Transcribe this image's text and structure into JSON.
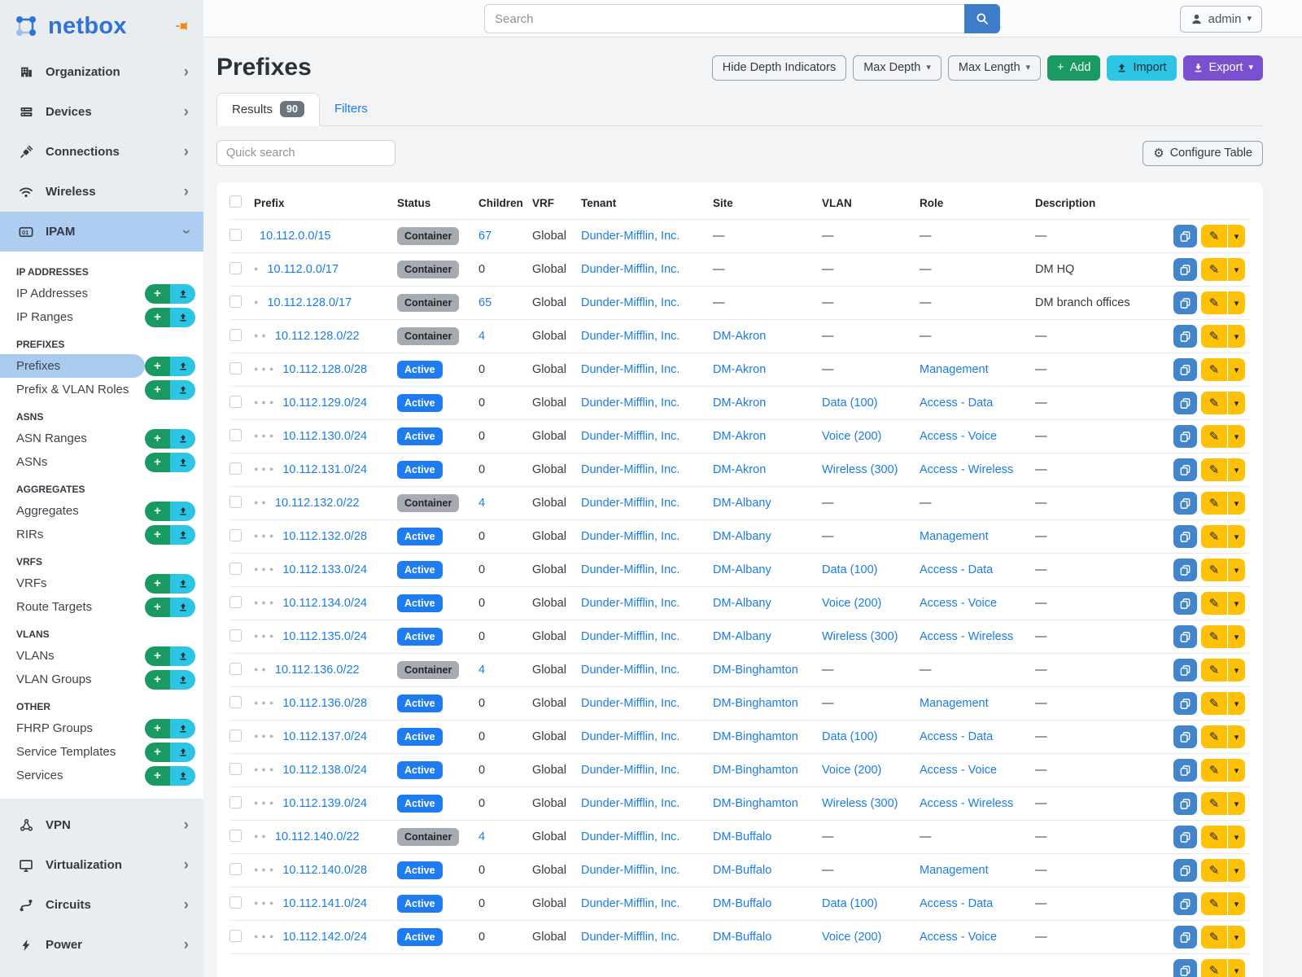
{
  "brand": {
    "name": "netbox"
  },
  "topbar": {
    "search_placeholder": "Search",
    "user_label": "admin"
  },
  "sidebar": {
    "top_items": [
      {
        "label": "Organization",
        "icon": "building-icon"
      },
      {
        "label": "Devices",
        "icon": "server-icon"
      },
      {
        "label": "Connections",
        "icon": "plug-icon"
      },
      {
        "label": "Wireless",
        "icon": "wifi-icon"
      }
    ],
    "active_item": {
      "label": "IPAM",
      "icon": "ipam-icon"
    },
    "ipam_groups": [
      {
        "header": "IP ADDRESSES",
        "items": [
          {
            "label": "IP Addresses"
          },
          {
            "label": "IP Ranges"
          }
        ]
      },
      {
        "header": "PREFIXES",
        "items": [
          {
            "label": "Prefixes",
            "active": true
          },
          {
            "label": "Prefix & VLAN Roles"
          }
        ]
      },
      {
        "header": "ASNS",
        "items": [
          {
            "label": "ASN Ranges"
          },
          {
            "label": "ASNs"
          }
        ]
      },
      {
        "header": "AGGREGATES",
        "items": [
          {
            "label": "Aggregates"
          },
          {
            "label": "RIRs"
          }
        ]
      },
      {
        "header": "VRFS",
        "items": [
          {
            "label": "VRFs"
          },
          {
            "label": "Route Targets"
          }
        ]
      },
      {
        "header": "VLANS",
        "items": [
          {
            "label": "VLANs"
          },
          {
            "label": "VLAN Groups"
          }
        ]
      },
      {
        "header": "OTHER",
        "items": [
          {
            "label": "FHRP Groups"
          },
          {
            "label": "Service Templates"
          },
          {
            "label": "Services"
          }
        ]
      }
    ],
    "bottom_items": [
      {
        "label": "VPN",
        "icon": "vpn-icon"
      },
      {
        "label": "Virtualization",
        "icon": "virtualization-icon"
      },
      {
        "label": "Circuits",
        "icon": "circuits-icon"
      },
      {
        "label": "Power",
        "icon": "power-icon"
      }
    ]
  },
  "page": {
    "title": "Prefixes",
    "toolbar": {
      "hide_depth_label": "Hide Depth Indicators",
      "max_depth_label": "Max Depth",
      "max_length_label": "Max Length",
      "add_label": "Add",
      "import_label": "Import",
      "export_label": "Export"
    },
    "tabs": [
      {
        "label": "Results",
        "count": "90",
        "active": true
      },
      {
        "label": "Filters"
      }
    ],
    "quick_search_placeholder": "Quick search",
    "configure_table_label": "Configure Table"
  },
  "table": {
    "empty_marker": "—",
    "columns": [
      "Prefix",
      "Status",
      "Children",
      "VRF",
      "Tenant",
      "Site",
      "VLAN",
      "Role",
      "Description"
    ],
    "rows": [
      {
        "prefix": "10.112.0.0/15",
        "depth": 0,
        "status": "Container",
        "children": "67",
        "vrf": "Global",
        "tenant": "Dunder-Mifflin, Inc.",
        "site": "",
        "vlan": "",
        "role": "",
        "description": ""
      },
      {
        "prefix": "10.112.0.0/17",
        "depth": 1,
        "status": "Container",
        "children": "0",
        "vrf": "Global",
        "tenant": "Dunder-Mifflin, Inc.",
        "site": "",
        "vlan": "",
        "role": "",
        "description": "DM HQ"
      },
      {
        "prefix": "10.112.128.0/17",
        "depth": 1,
        "status": "Container",
        "children": "65",
        "vrf": "Global",
        "tenant": "Dunder-Mifflin, Inc.",
        "site": "",
        "vlan": "",
        "role": "",
        "description": "DM branch offices"
      },
      {
        "prefix": "10.112.128.0/22",
        "depth": 2,
        "status": "Container",
        "children": "4",
        "vrf": "Global",
        "tenant": "Dunder-Mifflin, Inc.",
        "site": "DM-Akron",
        "vlan": "",
        "role": "",
        "description": ""
      },
      {
        "prefix": "10.112.128.0/28",
        "depth": 3,
        "status": "Active",
        "children": "0",
        "vrf": "Global",
        "tenant": "Dunder-Mifflin, Inc.",
        "site": "DM-Akron",
        "vlan": "",
        "role": "Management",
        "description": ""
      },
      {
        "prefix": "10.112.129.0/24",
        "depth": 3,
        "status": "Active",
        "children": "0",
        "vrf": "Global",
        "tenant": "Dunder-Mifflin, Inc.",
        "site": "DM-Akron",
        "vlan": "Data (100)",
        "role": "Access - Data",
        "description": ""
      },
      {
        "prefix": "10.112.130.0/24",
        "depth": 3,
        "status": "Active",
        "children": "0",
        "vrf": "Global",
        "tenant": "Dunder-Mifflin, Inc.",
        "site": "DM-Akron",
        "vlan": "Voice (200)",
        "role": "Access - Voice",
        "description": ""
      },
      {
        "prefix": "10.112.131.0/24",
        "depth": 3,
        "status": "Active",
        "children": "0",
        "vrf": "Global",
        "tenant": "Dunder-Mifflin, Inc.",
        "site": "DM-Akron",
        "vlan": "Wireless (300)",
        "role": "Access - Wireless",
        "description": ""
      },
      {
        "prefix": "10.112.132.0/22",
        "depth": 2,
        "status": "Container",
        "children": "4",
        "vrf": "Global",
        "tenant": "Dunder-Mifflin, Inc.",
        "site": "DM-Albany",
        "vlan": "",
        "role": "",
        "description": ""
      },
      {
        "prefix": "10.112.132.0/28",
        "depth": 3,
        "status": "Active",
        "children": "0",
        "vrf": "Global",
        "tenant": "Dunder-Mifflin, Inc.",
        "site": "DM-Albany",
        "vlan": "",
        "role": "Management",
        "description": ""
      },
      {
        "prefix": "10.112.133.0/24",
        "depth": 3,
        "status": "Active",
        "children": "0",
        "vrf": "Global",
        "tenant": "Dunder-Mifflin, Inc.",
        "site": "DM-Albany",
        "vlan": "Data (100)",
        "role": "Access - Data",
        "description": ""
      },
      {
        "prefix": "10.112.134.0/24",
        "depth": 3,
        "status": "Active",
        "children": "0",
        "vrf": "Global",
        "tenant": "Dunder-Mifflin, Inc.",
        "site": "DM-Albany",
        "vlan": "Voice (200)",
        "role": "Access - Voice",
        "description": ""
      },
      {
        "prefix": "10.112.135.0/24",
        "depth": 3,
        "status": "Active",
        "children": "0",
        "vrf": "Global",
        "tenant": "Dunder-Mifflin, Inc.",
        "site": "DM-Albany",
        "vlan": "Wireless (300)",
        "role": "Access - Wireless",
        "description": ""
      },
      {
        "prefix": "10.112.136.0/22",
        "depth": 2,
        "status": "Container",
        "children": "4",
        "vrf": "Global",
        "tenant": "Dunder-Mifflin, Inc.",
        "site": "DM-Binghamton",
        "vlan": "",
        "role": "",
        "description": ""
      },
      {
        "prefix": "10.112.136.0/28",
        "depth": 3,
        "status": "Active",
        "children": "0",
        "vrf": "Global",
        "tenant": "Dunder-Mifflin, Inc.",
        "site": "DM-Binghamton",
        "vlan": "",
        "role": "Management",
        "description": ""
      },
      {
        "prefix": "10.112.137.0/24",
        "depth": 3,
        "status": "Active",
        "children": "0",
        "vrf": "Global",
        "tenant": "Dunder-Mifflin, Inc.",
        "site": "DM-Binghamton",
        "vlan": "Data (100)",
        "role": "Access - Data",
        "description": ""
      },
      {
        "prefix": "10.112.138.0/24",
        "depth": 3,
        "status": "Active",
        "children": "0",
        "vrf": "Global",
        "tenant": "Dunder-Mifflin, Inc.",
        "site": "DM-Binghamton",
        "vlan": "Voice (200)",
        "role": "Access - Voice",
        "description": ""
      },
      {
        "prefix": "10.112.139.0/24",
        "depth": 3,
        "status": "Active",
        "children": "0",
        "vrf": "Global",
        "tenant": "Dunder-Mifflin, Inc.",
        "site": "DM-Binghamton",
        "vlan": "Wireless (300)",
        "role": "Access - Wireless",
        "description": ""
      },
      {
        "prefix": "10.112.140.0/22",
        "depth": 2,
        "status": "Container",
        "children": "4",
        "vrf": "Global",
        "tenant": "Dunder-Mifflin, Inc.",
        "site": "DM-Buffalo",
        "vlan": "",
        "role": "",
        "description": ""
      },
      {
        "prefix": "10.112.140.0/28",
        "depth": 3,
        "status": "Active",
        "children": "0",
        "vrf": "Global",
        "tenant": "Dunder-Mifflin, Inc.",
        "site": "DM-Buffalo",
        "vlan": "",
        "role": "Management",
        "description": ""
      },
      {
        "prefix": "10.112.141.0/24",
        "depth": 3,
        "status": "Active",
        "children": "0",
        "vrf": "Global",
        "tenant": "Dunder-Mifflin, Inc.",
        "site": "DM-Buffalo",
        "vlan": "Data (100)",
        "role": "Access - Data",
        "description": ""
      },
      {
        "prefix": "10.112.142.0/24",
        "depth": 3,
        "status": "Active",
        "children": "0",
        "vrf": "Global",
        "tenant": "Dunder-Mifflin, Inc.",
        "site": "DM-Buffalo",
        "vlan": "Voice (200)",
        "role": "Access - Voice",
        "description": ""
      },
      {
        "prefix": "",
        "depth": 0,
        "status": "",
        "children": "",
        "vrf": "",
        "tenant": "",
        "site": "",
        "vlan": "",
        "role": "",
        "description": "",
        "partial": true
      }
    ]
  },
  "colors": {
    "link": "#1a7ce8",
    "active_badge": "#1e7cf0",
    "container_badge": "#a6abb1",
    "add_green": "#189a62",
    "import_cyan": "#2dc5e4",
    "export_purple": "#7a4fd0",
    "edit_yellow": "#ffc107",
    "copy_blue": "#4285ca",
    "sidebar_active": "#a9cbf0",
    "brand_blue": "#2f72d9"
  }
}
